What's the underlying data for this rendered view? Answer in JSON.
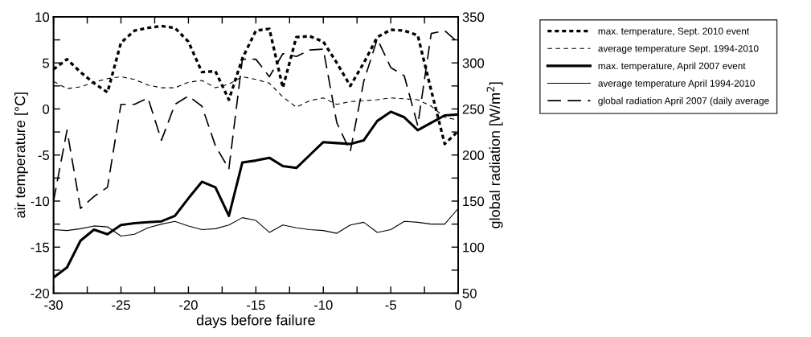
{
  "chart_data": {
    "type": "line",
    "xlabel": "days before failure",
    "ylabel": "air temperature [°C]",
    "y2label": "global radiation [W/m$^{2}$]",
    "x": [
      -30,
      -29,
      -28,
      -27,
      -26,
      -25,
      -24,
      -23,
      -22,
      -21,
      -20,
      -19,
      -18,
      -17,
      -16,
      -15,
      -14,
      -13,
      -12,
      -11,
      -10,
      -9,
      -8,
      -7,
      -6,
      -5,
      -4,
      -3,
      -2,
      -1,
      0
    ],
    "xlim": [
      -30,
      0
    ],
    "xticks": [
      -30,
      {
        "value": -27.5,
        "label": null
      },
      -25,
      {
        "value": -22.5,
        "label": null
      },
      -20,
      {
        "value": -17.5,
        "label": null
      },
      -15,
      {
        "value": -12.5,
        "label": null
      },
      -10,
      {
        "value": -7.5,
        "label": null
      },
      -5,
      {
        "value": -2.5,
        "label": null
      },
      0
    ],
    "ylim": [
      -20,
      10
    ],
    "yticks": [
      -20,
      {
        "value": -17.5,
        "label": null
      },
      -15,
      {
        "value": -12.5,
        "label": null
      },
      -10,
      {
        "value": -7.5,
        "label": null
      },
      -5,
      {
        "value": -2.5,
        "label": null
      },
      0,
      {
        "value": 2.5,
        "label": null
      },
      5,
      {
        "value": 7.5,
        "label": null
      },
      10
    ],
    "y2lim": [
      50,
      350
    ],
    "y2ticks": [
      50,
      {
        "value": 75,
        "label": null
      },
      100,
      {
        "value": 125,
        "label": null
      },
      150,
      {
        "value": 175,
        "label": null
      },
      200,
      {
        "value": 225,
        "label": null
      },
      250,
      {
        "value": 275,
        "label": null
      },
      300,
      {
        "value": 325,
        "label": null
      },
      350
    ],
    "grid": false,
    "legend": "top right",
    "marker": "none",
    "series": [
      {
        "name": "max. temperature, Sept. 2010 event",
        "color": "#000000",
        "line_style": "dotted",
        "values": [
          4.3,
          5.4,
          4,
          2.8,
          1.8,
          7.2,
          8.5,
          8.8,
          9.0,
          8.8,
          7.3,
          4,
          4.1,
          1,
          5.5,
          8.5,
          8.7,
          2.3,
          7.8,
          7.9,
          7.3,
          5,
          2.5,
          5,
          7.8,
          8.6,
          8.5,
          8,
          2,
          -3.8,
          -2.4
        ]
      },
      {
        "name": "average temperature Sept. 1994-2010",
        "color": "#000000",
        "line_style": "dashed",
        "values": [
          3.0,
          2.2,
          2.4,
          2.9,
          3.3,
          3.5,
          3.2,
          2.6,
          2.3,
          2.3,
          2.9,
          3.1,
          2.3,
          2.7,
          3.5,
          3.2,
          2.8,
          1.3,
          0.2,
          0.9,
          1.2,
          0.5,
          0.8,
          0.9,
          1,
          1.2,
          1.1,
          1,
          0.3,
          -0.9,
          -1.2
        ]
      },
      {
        "name": "max. temperature, April 2007 event",
        "color": "#000000",
        "line_style": "solid",
        "values": [
          -18.3,
          -17.2,
          -14.3,
          -13.1,
          -13.6,
          -12.6,
          -12.4,
          -12.3,
          -12.2,
          -11.6,
          -9.7,
          -7.9,
          -8.5,
          -11.6,
          -5.8,
          -5.6,
          -5.3,
          -6.2,
          -6.4,
          -5,
          -3.6,
          -3.7,
          -3.8,
          -3.4,
          -1.3,
          -0.3,
          -0.9,
          -2.3,
          -1.5,
          -0.7,
          -0.6
        ]
      },
      {
        "name": "average temperature April 1994-2010",
        "color": "#000000",
        "line_style": "solid",
        "values": [
          -13.1,
          -13.2,
          -13,
          -12.7,
          -12.8,
          -13.8,
          -13.6,
          -12.9,
          -12.5,
          -12.2,
          -12.7,
          -13.1,
          -13,
          -12.6,
          -11.8,
          -12.1,
          -13.4,
          -12.6,
          -12.9,
          -13.1,
          -13.2,
          -13.5,
          -12.6,
          -12.3,
          -13.4,
          -13.1,
          -12.2,
          -12.3,
          -12.5,
          -12.5,
          -10.8
        ]
      },
      {
        "name": "global radiation April 2007 (daily average",
        "color": "#000000",
        "line_style": "dashed",
        "axis": "y2",
        "values": [
          150,
          227,
          142,
          155,
          165,
          255,
          255,
          262,
          216,
          255,
          264,
          253,
          210,
          185,
          304,
          304,
          285,
          310,
          307,
          314,
          315,
          235,
          204,
          280,
          326,
          295,
          286,
          232,
          332,
          335,
          322
        ]
      }
    ]
  }
}
